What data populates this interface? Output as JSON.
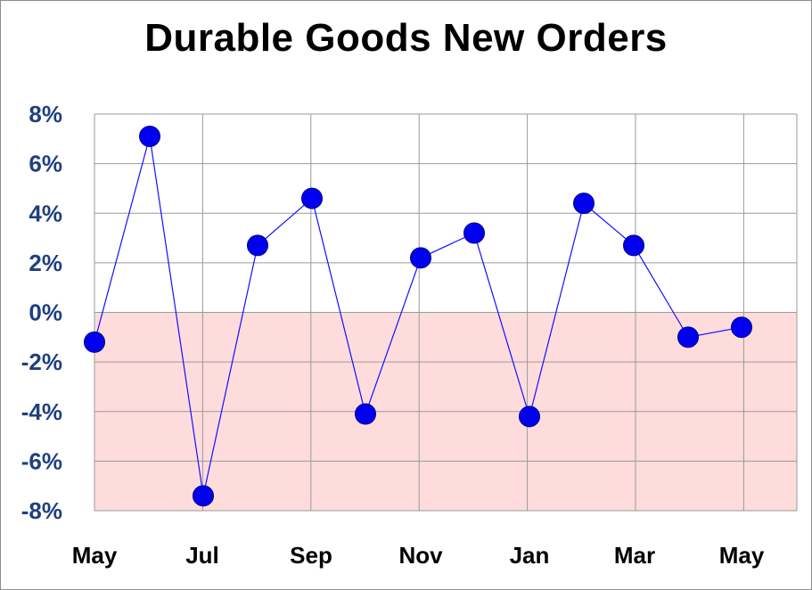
{
  "colors": {
    "negative_band": "#ffdcdc",
    "grid": "#9a9a9a",
    "line": "#1010ff",
    "marker": "#0000ee",
    "y_tick_label": "#1f3f7f",
    "x_tick_label": "#000000",
    "title": "#000000"
  },
  "chart_data": {
    "type": "line",
    "title": "Durable Goods New Orders",
    "xlabel": "",
    "ylabel": "",
    "x_tick_labels": [
      "May",
      "Jul",
      "Sep",
      "Nov",
      "Jan",
      "Mar",
      "May"
    ],
    "y_tick_labels": [
      "8%",
      "6%",
      "4%",
      "2%",
      "0%",
      "-2%",
      "-4%",
      "-6%",
      "-8%"
    ],
    "ylim": [
      -8,
      8
    ],
    "y_unit": "%",
    "grid": true,
    "legend": "none",
    "shaded_region": {
      "from": -8,
      "to": 0
    },
    "series": [
      {
        "points_per_month": true,
        "values": [
          -1.2,
          7.1,
          -7.4,
          2.7,
          4.6,
          -4.1,
          2.2,
          3.2,
          -4.2,
          4.4,
          2.7,
          -1.0,
          -0.6
        ]
      }
    ]
  }
}
